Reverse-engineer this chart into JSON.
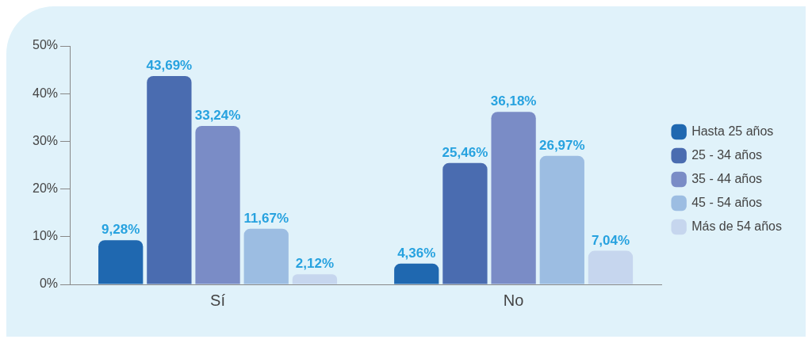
{
  "chart_data": {
    "type": "bar",
    "categories": [
      "Sí",
      "No"
    ],
    "series": [
      {
        "name": "Hasta 25 años",
        "color": "#1f68b0",
        "values": [
          9.28,
          4.36
        ],
        "value_labels": [
          "9,28%",
          "4,36%"
        ]
      },
      {
        "name": "25 - 34 años",
        "color": "#4a6cb0",
        "values": [
          43.69,
          25.46
        ],
        "value_labels": [
          "43,69%",
          "25,46%"
        ]
      },
      {
        "name": "35 - 44 años",
        "color": "#7a8cc6",
        "values": [
          33.24,
          36.18
        ],
        "value_labels": [
          "33,24%",
          "36,18%"
        ]
      },
      {
        "name": "45 - 54 años",
        "color": "#9cbde2",
        "values": [
          11.67,
          26.97
        ],
        "value_labels": [
          "11,67%",
          "26,97%"
        ]
      },
      {
        "name": "Más de 54 años",
        "color": "#c6d6ee",
        "values": [
          2.12,
          7.04
        ],
        "value_labels": [
          "2,12%",
          "7,04%"
        ]
      }
    ],
    "ylim": [
      0,
      50
    ],
    "yticks": [
      {
        "value": 0,
        "label": "0%"
      },
      {
        "value": 10,
        "label": "10%"
      },
      {
        "value": 20,
        "label": "20%"
      },
      {
        "value": 30,
        "label": "30%"
      },
      {
        "value": 40,
        "label": "40%"
      },
      {
        "value": 50,
        "label": "50%"
      }
    ],
    "grid": false,
    "legend": "right"
  }
}
